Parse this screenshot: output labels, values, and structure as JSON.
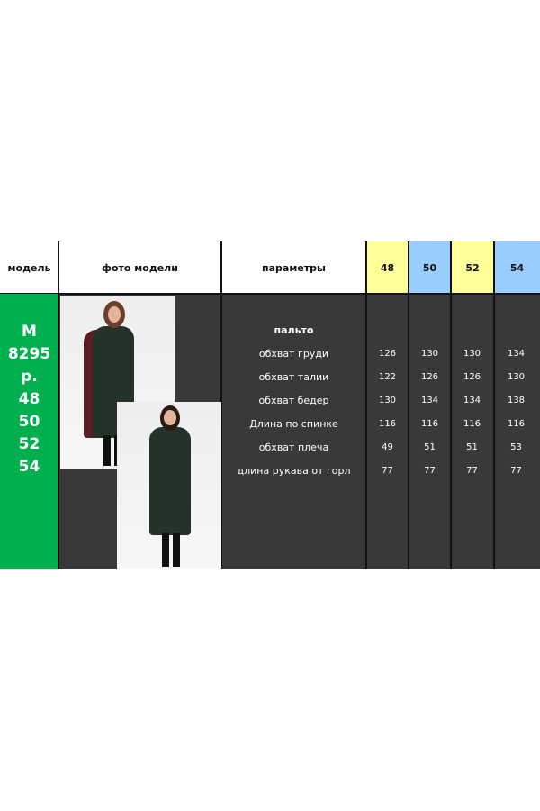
{
  "header": {
    "model": "модель",
    "photo": "фото модели",
    "params": "параметры",
    "sizes": [
      "48",
      "50",
      "52",
      "54"
    ]
  },
  "size_colors": [
    "#ffff99",
    "#99ccff",
    "#ffff99",
    "#99ccff"
  ],
  "model": {
    "lines": [
      "М",
      "8295",
      "р.",
      "48",
      "50",
      "52",
      "54"
    ],
    "color": "#00b050"
  },
  "product": "пальто",
  "rows": [
    {
      "label": "обхват груди",
      "values": [
        "126",
        "130",
        "130",
        "134"
      ]
    },
    {
      "label": "обхват талии",
      "values": [
        "122",
        "126",
        "126",
        "130"
      ]
    },
    {
      "label": "обхват бедер",
      "values": [
        "130",
        "134",
        "134",
        "138"
      ]
    },
    {
      "label": "Длина по спинке",
      "values": [
        "116",
        "116",
        "116",
        "116"
      ]
    },
    {
      "label": "обхват плеча",
      "values": [
        "49",
        "51",
        "51",
        "53"
      ]
    },
    {
      "label": "длина рукава от горл",
      "values": [
        "77",
        "77",
        "77",
        "77"
      ]
    }
  ]
}
